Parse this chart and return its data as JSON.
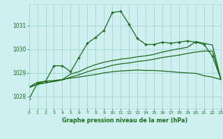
{
  "title": "Graphe pression niveau de la mer (hPa)",
  "bg_color": "#cff0f0",
  "grid_color": "#a8d8d8",
  "line_color": "#1a6b1a",
  "xlim": [
    0,
    23
  ],
  "ylim": [
    1027.5,
    1031.9
  ],
  "yticks": [
    1028,
    1029,
    1030,
    1031
  ],
  "xticks": [
    0,
    1,
    2,
    3,
    4,
    5,
    6,
    7,
    8,
    9,
    10,
    11,
    12,
    13,
    14,
    15,
    16,
    17,
    18,
    19,
    20,
    21,
    22,
    23
  ],
  "series1": [
    1027.9,
    1028.55,
    1028.65,
    1029.3,
    1029.3,
    1029.05,
    1029.65,
    1030.25,
    1030.5,
    1030.8,
    1031.55,
    1031.6,
    1031.05,
    1030.45,
    1030.2,
    1030.2,
    1030.3,
    1030.25,
    1030.3,
    1030.35,
    1030.3,
    1030.2,
    1029.7,
    1028.75
  ],
  "series2": [
    1028.4,
    1028.6,
    1028.65,
    1028.68,
    1028.72,
    1028.78,
    1028.82,
    1028.88,
    1028.93,
    1029.0,
    1029.05,
    1029.08,
    1029.1,
    1029.12,
    1029.1,
    1029.1,
    1029.08,
    1029.05,
    1029.02,
    1029.0,
    1028.98,
    1028.88,
    1028.82,
    1028.72
  ],
  "series3": [
    1028.38,
    1028.52,
    1028.58,
    1028.64,
    1028.7,
    1028.82,
    1028.92,
    1029.05,
    1029.15,
    1029.22,
    1029.32,
    1029.38,
    1029.42,
    1029.48,
    1029.52,
    1029.58,
    1029.65,
    1029.7,
    1029.75,
    1029.82,
    1029.88,
    1029.92,
    1029.92,
    1028.75
  ],
  "series4": [
    1028.38,
    1028.52,
    1028.58,
    1028.64,
    1028.72,
    1028.95,
    1029.05,
    1029.22,
    1029.35,
    1029.45,
    1029.52,
    1029.58,
    1029.62,
    1029.68,
    1029.72,
    1029.78,
    1029.88,
    1029.95,
    1030.02,
    1030.08,
    1030.32,
    1030.25,
    1030.18,
    1028.75
  ]
}
